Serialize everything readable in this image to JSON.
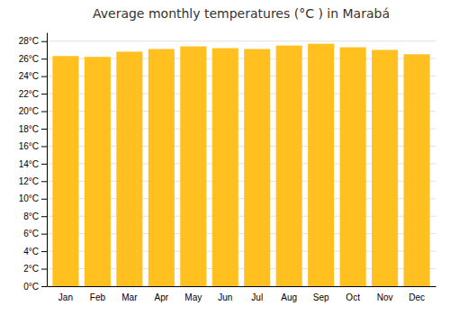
{
  "chart_data": {
    "type": "bar",
    "title": "Average monthly temperatures (°C ) in Marabá",
    "categories": [
      "Jan",
      "Feb",
      "Mar",
      "Apr",
      "May",
      "Jun",
      "Jul",
      "Aug",
      "Sep",
      "Oct",
      "Nov",
      "Dec"
    ],
    "values": [
      26.3,
      26.2,
      26.8,
      27.1,
      27.4,
      27.2,
      27.1,
      27.5,
      27.7,
      27.3,
      27.0,
      26.5
    ],
    "color": "#FFC020",
    "ylim": [
      0,
      29
    ],
    "yticks": [
      {
        "value": 0,
        "label": "0°C"
      },
      {
        "value": 2,
        "label": "2°C"
      },
      {
        "value": 4,
        "label": "4°C"
      },
      {
        "value": 6,
        "label": "6°C"
      },
      {
        "value": 8,
        "label": "8°C"
      },
      {
        "value": 10,
        "label": "10°C"
      },
      {
        "value": 12,
        "label": "12°C"
      },
      {
        "value": 14,
        "label": "14°C"
      },
      {
        "value": 16,
        "label": "16°C"
      },
      {
        "value": 18,
        "label": "18°C"
      },
      {
        "value": 20,
        "label": "20°C"
      },
      {
        "value": 22,
        "label": "22°C"
      },
      {
        "value": 24,
        "label": "24°C"
      },
      {
        "value": 26,
        "label": "26°C"
      },
      {
        "value": 28,
        "label": "28°C"
      }
    ],
    "grid": true
  }
}
